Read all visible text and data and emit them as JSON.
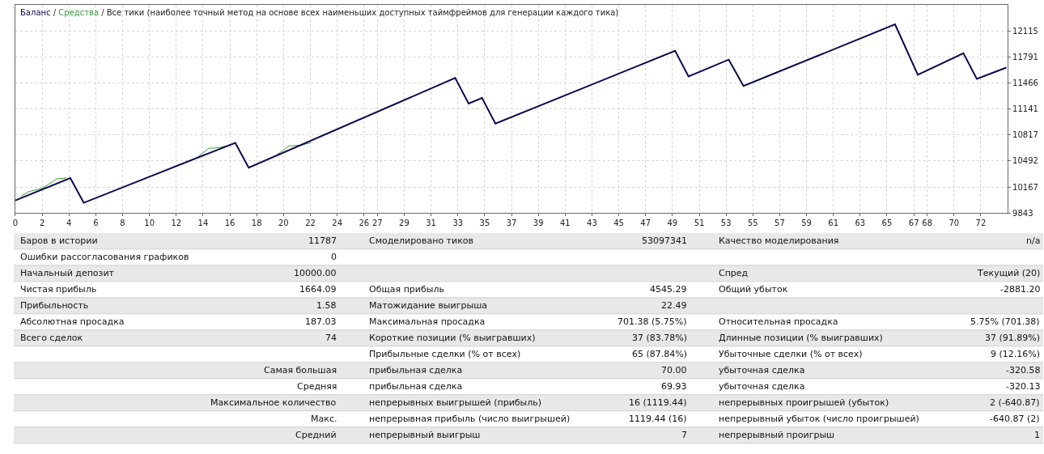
{
  "chart_data": [
    {
      "type": "line",
      "title": "Баланс / Средства / Все тики (наиболее точный метод на основе всех наименьших доступных таймфреймов для генерации каждого тика)",
      "grid": true,
      "marker": "none",
      "line_style": "solid",
      "series": [
        {
          "color": "#0a0a50",
          "x": [
            0,
            4.1,
            5.1,
            16.4,
            17.4,
            32.8,
            33.8,
            34.8,
            35.8,
            49.2,
            50.2,
            53.2,
            54.3,
            65.6,
            67.3,
            70.7,
            71.7,
            73.9
          ],
          "values": [
            10000,
            10280,
            9970,
            10720,
            10410,
            11530,
            11210,
            11280,
            10960,
            11870,
            11550,
            11760,
            11430,
            12200,
            11570,
            11840,
            11520,
            11660
          ]
        },
        {
          "color": "#3a9a3a",
          "x": [
            0.4,
            1.0,
            2.0,
            3.1,
            3.8,
            9,
            13.6,
            14.4,
            15.2,
            16.0,
            18,
            19.5,
            20.4,
            21.3,
            22.0
          ],
          "values": [
            10050,
            10110,
            10150,
            10270,
            10280,
            null,
            10540,
            10650,
            10660,
            10690,
            null,
            10570,
            10680,
            10690,
            10720
          ]
        }
      ],
      "xlim": [
        0,
        74
      ],
      "xticks": [
        0,
        2,
        4,
        6,
        8,
        10,
        12,
        14,
        16,
        18,
        20,
        22,
        24,
        26,
        27,
        29,
        31,
        33,
        35,
        37,
        39,
        41,
        43,
        45,
        47,
        49,
        51,
        53,
        55,
        57,
        59,
        61,
        63,
        65,
        67,
        68,
        70,
        72
      ],
      "ylim": [
        9843,
        12445
      ],
      "yticks": [
        9843,
        10167,
        10492,
        10817,
        11141,
        11466,
        11791,
        12115
      ]
    },
    {
      "type": "other",
      "annotations": [
        "Баров в истории",
        "11787",
        "Смоделировано тиков",
        "53097341",
        "Качество моделирования",
        "n/a",
        "Ошибки рассогласования графиков",
        "0",
        null,
        null,
        null,
        null,
        "Начальный депозит",
        "10000.00",
        null,
        null,
        "Спред",
        "Текущий (20)",
        "Чистая прибыль",
        "1664.09",
        "Общая прибыль",
        "4545.29",
        "Общий убыток",
        "-2881.20",
        "Прибыльность",
        "1.58",
        "Матожидание выигрыша",
        "22.49",
        null,
        null,
        "Абсолютная просадка",
        "187.03",
        "Максимальная просадка",
        "701.38 (5.75%)",
        "Относительная просадка",
        "5.75% (701.38)",
        "Всего сделок",
        "74",
        "Короткие позиции (% выигравших)",
        "37 (83.78%)",
        "Длинные позиции (% выигравших)",
        "37 (91.89%)",
        null,
        null,
        "Прибыльные сделки (% от всех)",
        "65 (87.84%)",
        "Убыточные сделки (% от всех)",
        "9 (12.16%)",
        null,
        "Самая большая",
        "прибыльная сделка",
        "70.00",
        "убыточная сделка",
        "-320.58",
        null,
        "Средняя",
        "прибыльная сделка",
        "69.93",
        "убыточная сделка",
        "-320.13",
        null,
        "Максимальное количество",
        "непрерывных выигрышей (прибыль)",
        "16 (1119.44)",
        "непрерывных проигрышей (убыток)",
        "2 (-640.87)",
        null,
        "Макс.",
        "непрерывная прибыль (число выигрышей)",
        "1119.44 (16)",
        "непрерывный убыток (число проигрышей)",
        "-640.87 (2)",
        null,
        "Средний",
        "непрерывный выигрыш",
        "7",
        "непрерывный проигрыш",
        "1"
      ]
    }
  ]
}
